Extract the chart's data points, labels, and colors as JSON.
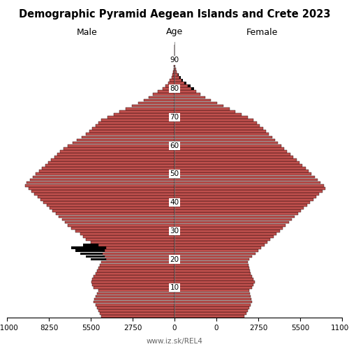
{
  "title": "Demographic Pyramid Aegean Islands and Crete 2023",
  "label_male": "Male",
  "label_female": "Female",
  "label_age": "Age",
  "footer": "www.iz.sk/REL4",
  "xlim": 11000,
  "bar_color": "#c0504d",
  "bar_color_old": "#000000",
  "bg_color": "#ffffff",
  "ages": [
    0,
    1,
    2,
    3,
    4,
    5,
    6,
    7,
    8,
    9,
    10,
    11,
    12,
    13,
    14,
    15,
    16,
    17,
    18,
    19,
    20,
    21,
    22,
    23,
    24,
    25,
    26,
    27,
    28,
    29,
    30,
    31,
    32,
    33,
    34,
    35,
    36,
    37,
    38,
    39,
    40,
    41,
    42,
    43,
    44,
    45,
    46,
    47,
    48,
    49,
    50,
    51,
    52,
    53,
    54,
    55,
    56,
    57,
    58,
    59,
    60,
    61,
    62,
    63,
    64,
    65,
    66,
    67,
    68,
    69,
    70,
    71,
    72,
    73,
    74,
    75,
    76,
    77,
    78,
    79,
    80,
    81,
    82,
    83,
    84,
    85,
    86,
    87,
    88,
    89,
    90,
    91,
    92,
    93,
    94,
    95
  ],
  "male_current": [
    4800,
    4900,
    5000,
    5100,
    5200,
    5300,
    5250,
    5200,
    5100,
    5000,
    5300,
    5400,
    5450,
    5400,
    5300,
    5200,
    5100,
    5000,
    4900,
    4800,
    4500,
    4600,
    4700,
    4600,
    4500,
    5000,
    5500,
    5800,
    6000,
    6200,
    6500,
    6800,
    7000,
    7200,
    7400,
    7600,
    7800,
    8000,
    8200,
    8400,
    8600,
    8800,
    9000,
    9200,
    9400,
    9600,
    9800,
    9700,
    9500,
    9300,
    9100,
    8900,
    8700,
    8500,
    8300,
    8100,
    7900,
    7700,
    7500,
    7300,
    7000,
    6700,
    6400,
    6100,
    5800,
    5600,
    5400,
    5200,
    5000,
    4800,
    4400,
    4000,
    3600,
    3200,
    2800,
    2400,
    2000,
    1700,
    1400,
    1100,
    800,
    600,
    430,
    300,
    200,
    130,
    80,
    50,
    30,
    15,
    8,
    4,
    2,
    1,
    1,
    0
  ],
  "male_old": [
    0,
    0,
    0,
    0,
    0,
    0,
    0,
    0,
    0,
    0,
    0,
    0,
    0,
    0,
    0,
    0,
    0,
    0,
    0,
    0,
    5500,
    5800,
    6200,
    6500,
    6800,
    6000,
    0,
    0,
    0,
    0,
    0,
    0,
    0,
    0,
    0,
    0,
    0,
    0,
    0,
    0,
    0,
    0,
    0,
    0,
    0,
    0,
    0,
    0,
    0,
    0,
    0,
    0,
    0,
    0,
    0,
    0,
    0,
    0,
    0,
    0,
    0,
    0,
    0,
    0,
    0,
    0,
    0,
    0,
    0,
    0,
    0,
    0,
    0,
    0,
    0,
    0,
    0,
    0,
    0,
    0,
    0,
    0,
    0,
    0,
    0,
    0,
    0,
    0,
    0,
    0,
    0,
    0,
    0,
    0,
    0,
    0
  ],
  "female_current": [
    4600,
    4700,
    4800,
    4900,
    5000,
    5100,
    5050,
    5000,
    4950,
    4900,
    5100,
    5200,
    5250,
    5200,
    5100,
    5000,
    4950,
    4900,
    4850,
    4800,
    4900,
    5100,
    5300,
    5500,
    5700,
    5900,
    6100,
    6300,
    6500,
    6700,
    6900,
    7100,
    7300,
    7500,
    7700,
    7900,
    8100,
    8300,
    8500,
    8700,
    8900,
    9100,
    9300,
    9500,
    9700,
    9900,
    9800,
    9600,
    9400,
    9200,
    9000,
    8800,
    8600,
    8400,
    8200,
    8000,
    7800,
    7600,
    7400,
    7200,
    7000,
    6800,
    6600,
    6400,
    6200,
    6000,
    5800,
    5600,
    5400,
    5200,
    4800,
    4400,
    4000,
    3600,
    3200,
    2800,
    2400,
    2000,
    1700,
    1400,
    1100,
    850,
    640,
    460,
    320,
    210,
    130,
    80,
    50,
    28,
    15,
    8,
    4,
    2,
    1,
    0
  ],
  "female_old": [
    0,
    0,
    0,
    0,
    0,
    0,
    0,
    0,
    0,
    0,
    0,
    0,
    0,
    0,
    0,
    0,
    0,
    0,
    0,
    0,
    0,
    0,
    0,
    0,
    0,
    0,
    0,
    0,
    0,
    0,
    0,
    0,
    0,
    0,
    0,
    0,
    0,
    0,
    0,
    0,
    0,
    0,
    0,
    0,
    0,
    0,
    0,
    0,
    0,
    0,
    0,
    0,
    0,
    0,
    0,
    0,
    0,
    0,
    0,
    0,
    0,
    0,
    0,
    0,
    0,
    0,
    0,
    0,
    0,
    0,
    0,
    0,
    0,
    0,
    0,
    0,
    0,
    0,
    0,
    0,
    1300,
    1050,
    780,
    560,
    390,
    260,
    160,
    100,
    60,
    35,
    18,
    9,
    5,
    2,
    1,
    0
  ]
}
